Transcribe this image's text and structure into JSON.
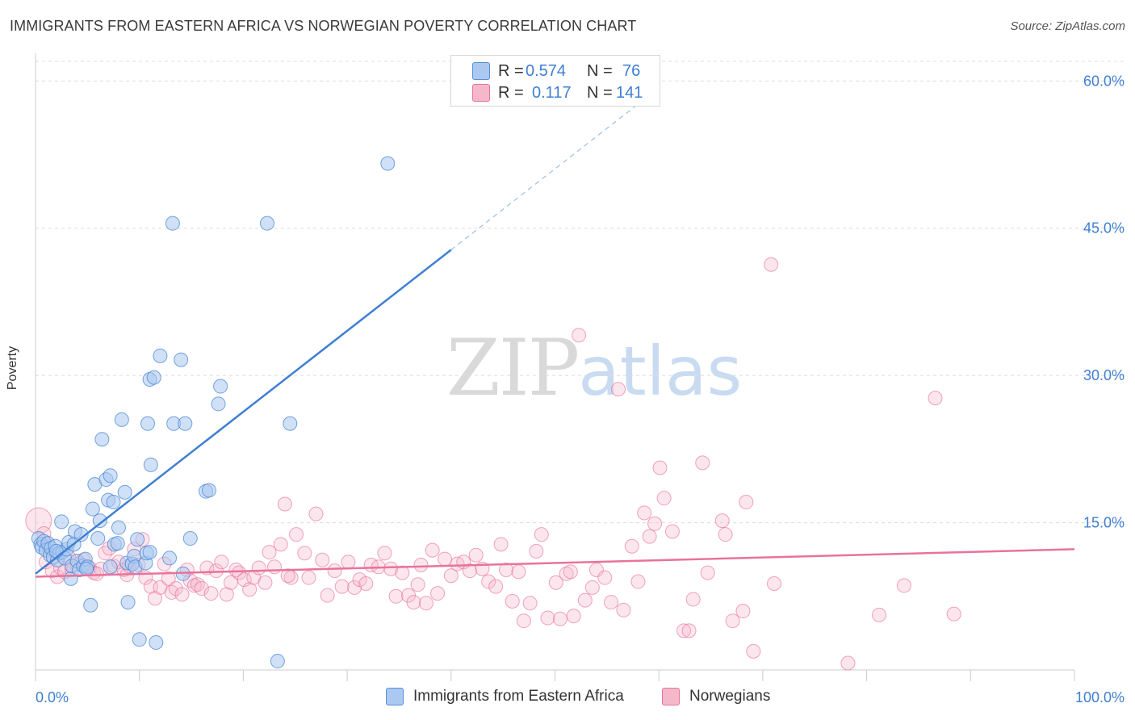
{
  "header": {
    "title": "IMMIGRANTS FROM EASTERN AFRICA VS NORWEGIAN POVERTY CORRELATION CHART",
    "source": "Source: ZipAtlas.com"
  },
  "watermark": {
    "zip": "ZIP",
    "atlas": "atlas"
  },
  "legend_top": {
    "rows": [
      {
        "r_label": "R =",
        "r_value": "0.574",
        "n_label": "N =",
        "n_value": "76",
        "color": "#aac8f0"
      },
      {
        "r_label": "R =",
        "r_value": "0.117",
        "n_label": "N =",
        "n_value": "141",
        "color": "#f5b8cb"
      }
    ]
  },
  "legend_bottom": {
    "items": [
      {
        "label": "Immigrants from Eastern Africa",
        "color": "#aac8f0"
      },
      {
        "label": "Norwegians",
        "color": "#f5b8cb"
      }
    ]
  },
  "chart_data": {
    "type": "scatter",
    "title": "IMMIGRANTS FROM EASTERN AFRICA VS NORWEGIAN POVERTY CORRELATION CHART",
    "xlabel": "",
    "ylabel": "Poverty",
    "xlim": [
      0,
      100
    ],
    "ylim": [
      0,
      62
    ],
    "x_tick_labels": [
      "0.0%",
      "100.0%"
    ],
    "y_ticks": [
      15,
      30,
      45,
      60
    ],
    "y_tick_labels": [
      "15.0%",
      "30.0%",
      "45.0%",
      "60.0%"
    ],
    "grid": true,
    "legend_position": "top-center",
    "colors": {
      "blue": "#3f7fd1",
      "blue_fill": "#aac8f0",
      "pink": "#e8739c",
      "pink_fill": "#f5b8cb"
    },
    "series": [
      {
        "name": "Immigrants from Eastern Africa",
        "trend": {
          "x": [
            0,
            40
          ],
          "y": [
            9.8,
            42.8
          ],
          "dashed_to": [
            60,
            59.3
          ]
        },
        "points": [
          [
            0.3,
            13.4
          ],
          [
            0.5,
            12.8
          ],
          [
            0.6,
            12.5
          ],
          [
            0.8,
            13.1
          ],
          [
            1.0,
            12.2
          ],
          [
            1.2,
            12.9
          ],
          [
            1.4,
            11.7
          ],
          [
            1.5,
            12.4
          ],
          [
            1.7,
            11.5
          ],
          [
            1.9,
            12.6
          ],
          [
            2.1,
            11.2
          ],
          [
            2.3,
            11.9
          ],
          [
            2.5,
            15.1
          ],
          [
            2.6,
            12.0
          ],
          [
            2.8,
            11.4
          ],
          [
            3.0,
            12.3
          ],
          [
            3.2,
            13.0
          ],
          [
            3.4,
            9.3
          ],
          [
            3.5,
            10.6
          ],
          [
            3.7,
            12.8
          ],
          [
            3.8,
            14.1
          ],
          [
            4.0,
            11.1
          ],
          [
            4.2,
            10.2
          ],
          [
            4.4,
            13.8
          ],
          [
            4.6,
            10.6
          ],
          [
            4.8,
            11.3
          ],
          [
            5.0,
            10.5
          ],
          [
            5.3,
            6.6
          ],
          [
            5.5,
            16.4
          ],
          [
            5.7,
            18.9
          ],
          [
            6.0,
            13.4
          ],
          [
            6.2,
            15.2
          ],
          [
            6.4,
            23.5
          ],
          [
            6.8,
            19.4
          ],
          [
            7.0,
            17.3
          ],
          [
            7.2,
            19.8
          ],
          [
            7.5,
            17.1
          ],
          [
            7.6,
            12.8
          ],
          [
            7.9,
            12.9
          ],
          [
            7.2,
            10.5
          ],
          [
            8.0,
            14.5
          ],
          [
            8.3,
            25.5
          ],
          [
            8.6,
            18.1
          ],
          [
            8.8,
            10.9
          ],
          [
            8.9,
            6.9
          ],
          [
            9.3,
            10.8
          ],
          [
            9.5,
            11.6
          ],
          [
            9.6,
            10.5
          ],
          [
            9.8,
            13.3
          ],
          [
            10.0,
            3.1
          ],
          [
            10.6,
            10.9
          ],
          [
            10.7,
            11.9
          ],
          [
            10.8,
            25.1
          ],
          [
            11.0,
            29.6
          ],
          [
            11.1,
            20.9
          ],
          [
            11.4,
            29.8
          ],
          [
            11.6,
            2.8
          ],
          [
            12.0,
            32.0
          ],
          [
            12.9,
            11.4
          ],
          [
            13.2,
            45.5
          ],
          [
            13.3,
            25.1
          ],
          [
            14.0,
            31.6
          ],
          [
            14.2,
            9.8
          ],
          [
            14.4,
            25.1
          ],
          [
            14.9,
            13.4
          ],
          [
            16.4,
            18.2
          ],
          [
            16.7,
            18.3
          ],
          [
            17.6,
            27.1
          ],
          [
            17.8,
            28.9
          ],
          [
            22.3,
            45.5
          ],
          [
            23.3,
            0.9
          ],
          [
            24.5,
            25.1
          ],
          [
            33.9,
            51.6
          ],
          [
            2.0,
            12.1
          ],
          [
            4.9,
            10.3
          ],
          [
            11.0,
            12.0
          ]
        ]
      },
      {
        "name": "Norwegians",
        "trend": {
          "x": [
            0,
            100
          ],
          "y": [
            9.5,
            12.3
          ]
        },
        "points": [
          [
            0.3,
            15.2
          ],
          [
            1.0,
            11.0
          ],
          [
            1.6,
            10.1
          ],
          [
            2.1,
            9.5
          ],
          [
            2.4,
            10.4
          ],
          [
            2.8,
            10.0
          ],
          [
            3.5,
            10.2
          ],
          [
            4.0,
            10.8
          ],
          [
            4.6,
            11.2
          ],
          [
            5.2,
            10.4
          ],
          [
            5.6,
            9.9
          ],
          [
            6.3,
            10.3
          ],
          [
            6.7,
            11.9
          ],
          [
            7.1,
            12.4
          ],
          [
            7.5,
            10.6
          ],
          [
            8.0,
            11.0
          ],
          [
            8.5,
            10.2
          ],
          [
            8.8,
            9.7
          ],
          [
            9.5,
            12.3
          ],
          [
            9.9,
            10.7
          ],
          [
            10.3,
            13.3
          ],
          [
            10.6,
            9.4
          ],
          [
            11.1,
            8.5
          ],
          [
            11.5,
            7.3
          ],
          [
            12.0,
            8.4
          ],
          [
            12.4,
            10.8
          ],
          [
            12.8,
            9.3
          ],
          [
            13.1,
            7.9
          ],
          [
            13.5,
            8.3
          ],
          [
            14.1,
            7.7
          ],
          [
            14.6,
            10.2
          ],
          [
            14.9,
            9.1
          ],
          [
            15.3,
            8.6
          ],
          [
            15.6,
            8.7
          ],
          [
            16.0,
            8.3
          ],
          [
            16.5,
            10.4
          ],
          [
            16.9,
            7.8
          ],
          [
            17.4,
            10.1
          ],
          [
            17.9,
            11.0
          ],
          [
            18.4,
            7.7
          ],
          [
            18.8,
            8.9
          ],
          [
            19.3,
            10.2
          ],
          [
            19.6,
            9.9
          ],
          [
            20.1,
            9.2
          ],
          [
            20.6,
            8.2
          ],
          [
            21.0,
            9.4
          ],
          [
            21.5,
            10.4
          ],
          [
            22.1,
            8.9
          ],
          [
            22.5,
            12.0
          ],
          [
            23.0,
            10.5
          ],
          [
            23.6,
            12.8
          ],
          [
            24.0,
            16.9
          ],
          [
            24.6,
            9.4
          ],
          [
            25.1,
            13.8
          ],
          [
            25.9,
            11.9
          ],
          [
            26.3,
            9.4
          ],
          [
            27.0,
            15.9
          ],
          [
            27.6,
            11.2
          ],
          [
            28.1,
            7.6
          ],
          [
            28.8,
            10.1
          ],
          [
            29.5,
            8.5
          ],
          [
            30.1,
            11.0
          ],
          [
            30.7,
            8.4
          ],
          [
            31.2,
            9.2
          ],
          [
            31.8,
            8.8
          ],
          [
            32.3,
            10.7
          ],
          [
            33.0,
            10.5
          ],
          [
            33.6,
            11.9
          ],
          [
            34.2,
            10.3
          ],
          [
            34.7,
            7.5
          ],
          [
            35.3,
            9.9
          ],
          [
            35.9,
            7.6
          ],
          [
            36.4,
            6.9
          ],
          [
            37.1,
            10.7
          ],
          [
            37.6,
            6.8
          ],
          [
            38.2,
            12.2
          ],
          [
            38.7,
            7.8
          ],
          [
            39.4,
            11.3
          ],
          [
            40.0,
            9.6
          ],
          [
            40.6,
            10.8
          ],
          [
            41.2,
            11.0
          ],
          [
            41.8,
            10.1
          ],
          [
            42.4,
            11.7
          ],
          [
            43.0,
            10.3
          ],
          [
            43.6,
            9.0
          ],
          [
            44.3,
            8.5
          ],
          [
            44.8,
            12.8
          ],
          [
            45.3,
            10.2
          ],
          [
            45.9,
            7.0
          ],
          [
            46.5,
            10.0
          ],
          [
            47.0,
            5.0
          ],
          [
            47.6,
            6.8
          ],
          [
            48.2,
            12.1
          ],
          [
            48.7,
            13.8
          ],
          [
            49.3,
            5.3
          ],
          [
            50.1,
            8.9
          ],
          [
            50.5,
            5.2
          ],
          [
            51.1,
            9.8
          ],
          [
            51.8,
            5.5
          ],
          [
            52.3,
            34.1
          ],
          [
            52.9,
            7.1
          ],
          [
            53.6,
            8.4
          ],
          [
            54.0,
            10.2
          ],
          [
            54.8,
            9.4
          ],
          [
            55.4,
            6.9
          ],
          [
            56.1,
            28.6
          ],
          [
            56.6,
            6.1
          ],
          [
            57.4,
            12.6
          ],
          [
            58.6,
            16.0
          ],
          [
            59.1,
            13.6
          ],
          [
            59.6,
            14.9
          ],
          [
            60.1,
            20.6
          ],
          [
            60.5,
            17.5
          ],
          [
            61.3,
            14.1
          ],
          [
            62.4,
            4.0
          ],
          [
            62.9,
            4.0
          ],
          [
            63.3,
            7.2
          ],
          [
            64.2,
            21.1
          ],
          [
            64.7,
            9.9
          ],
          [
            66.1,
            15.2
          ],
          [
            66.4,
            13.8
          ],
          [
            67.1,
            5.0
          ],
          [
            68.1,
            6.0
          ],
          [
            68.4,
            17.1
          ],
          [
            69.1,
            1.9
          ],
          [
            70.8,
            41.3
          ],
          [
            71.1,
            8.8
          ],
          [
            78.2,
            0.7
          ],
          [
            81.2,
            5.6
          ],
          [
            83.6,
            8.6
          ],
          [
            86.6,
            27.7
          ],
          [
            88.4,
            5.7
          ],
          [
            0.8,
            13.9
          ],
          [
            1.3,
            12.6
          ],
          [
            3.2,
            11.5
          ],
          [
            5.9,
            9.8
          ],
          [
            9.0,
            10.6
          ],
          [
            24.3,
            9.6
          ],
          [
            36.8,
            8.7
          ],
          [
            51.5,
            10.0
          ],
          [
            58.0,
            9.0
          ]
        ]
      }
    ]
  }
}
